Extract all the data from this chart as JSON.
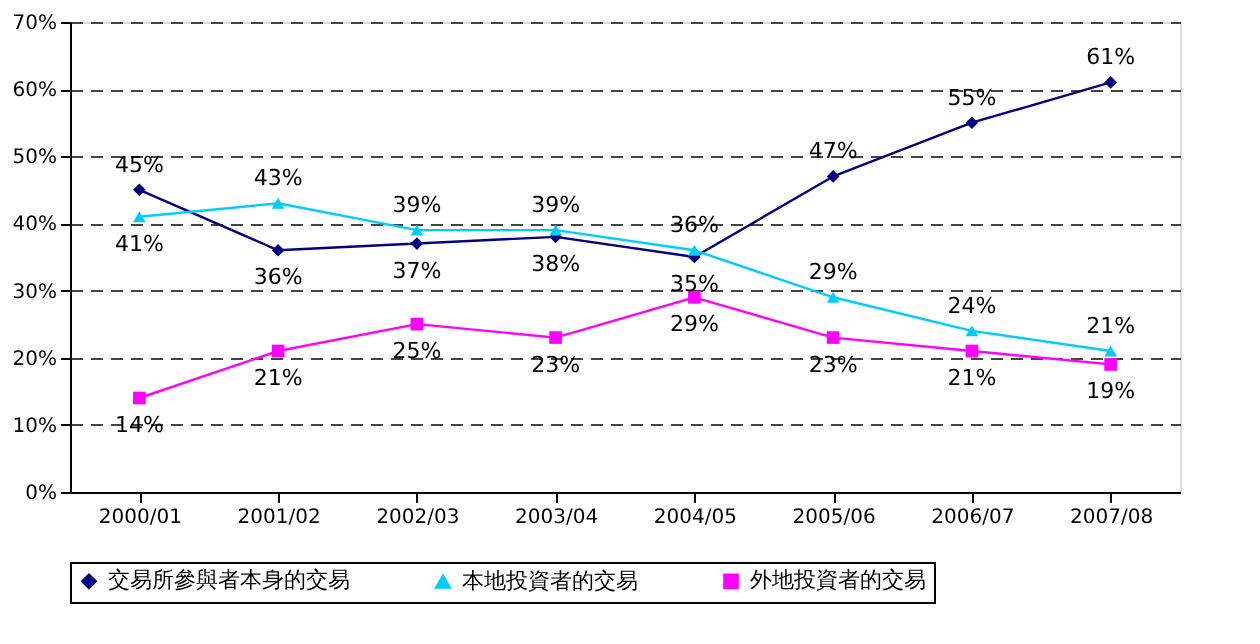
{
  "chart_data": {
    "type": "line",
    "categories": [
      "2000/01",
      "2001/02",
      "2002/03",
      "2003/04",
      "2004/05",
      "2005/06",
      "2006/07",
      "2007/08"
    ],
    "ylim": [
      0,
      70
    ],
    "yticks": [
      {
        "value": 0,
        "label": "0%"
      },
      {
        "value": 10,
        "label": "10%"
      },
      {
        "value": 20,
        "label": "20%"
      },
      {
        "value": 30,
        "label": "30%"
      },
      {
        "value": 40,
        "label": "40%"
      },
      {
        "value": 50,
        "label": "50%"
      },
      {
        "value": 60,
        "label": "60%"
      },
      {
        "value": 70,
        "label": "70%"
      }
    ],
    "grid": "y",
    "legend": "bottom",
    "series": [
      {
        "name": "交易所參與者本身的交易",
        "color": "#000080",
        "marker": "diamond",
        "values": [
          45,
          36,
          37,
          38,
          35,
          47,
          55,
          61
        ],
        "value_labels": [
          "45%",
          "36%",
          "37%",
          "38%",
          "35%",
          "47%",
          "55%",
          "61%"
        ]
      },
      {
        "name": "本地投資者的交易",
        "color": "#00ccff",
        "marker": "triangle",
        "values": [
          41,
          43,
          39,
          39,
          36,
          29,
          24,
          21
        ],
        "value_labels": [
          "41%",
          "43%",
          "39%",
          "39%",
          "36%",
          "29%",
          "24%",
          "21%"
        ]
      },
      {
        "name": "外地投資者的交易",
        "color": "#ff00ff",
        "marker": "square",
        "values": [
          14,
          21,
          25,
          23,
          29,
          23,
          21,
          19
        ],
        "value_labels": [
          "14%",
          "21%",
          "25%",
          "23%",
          "29%",
          "23%",
          "21%",
          "19%"
        ]
      }
    ]
  }
}
